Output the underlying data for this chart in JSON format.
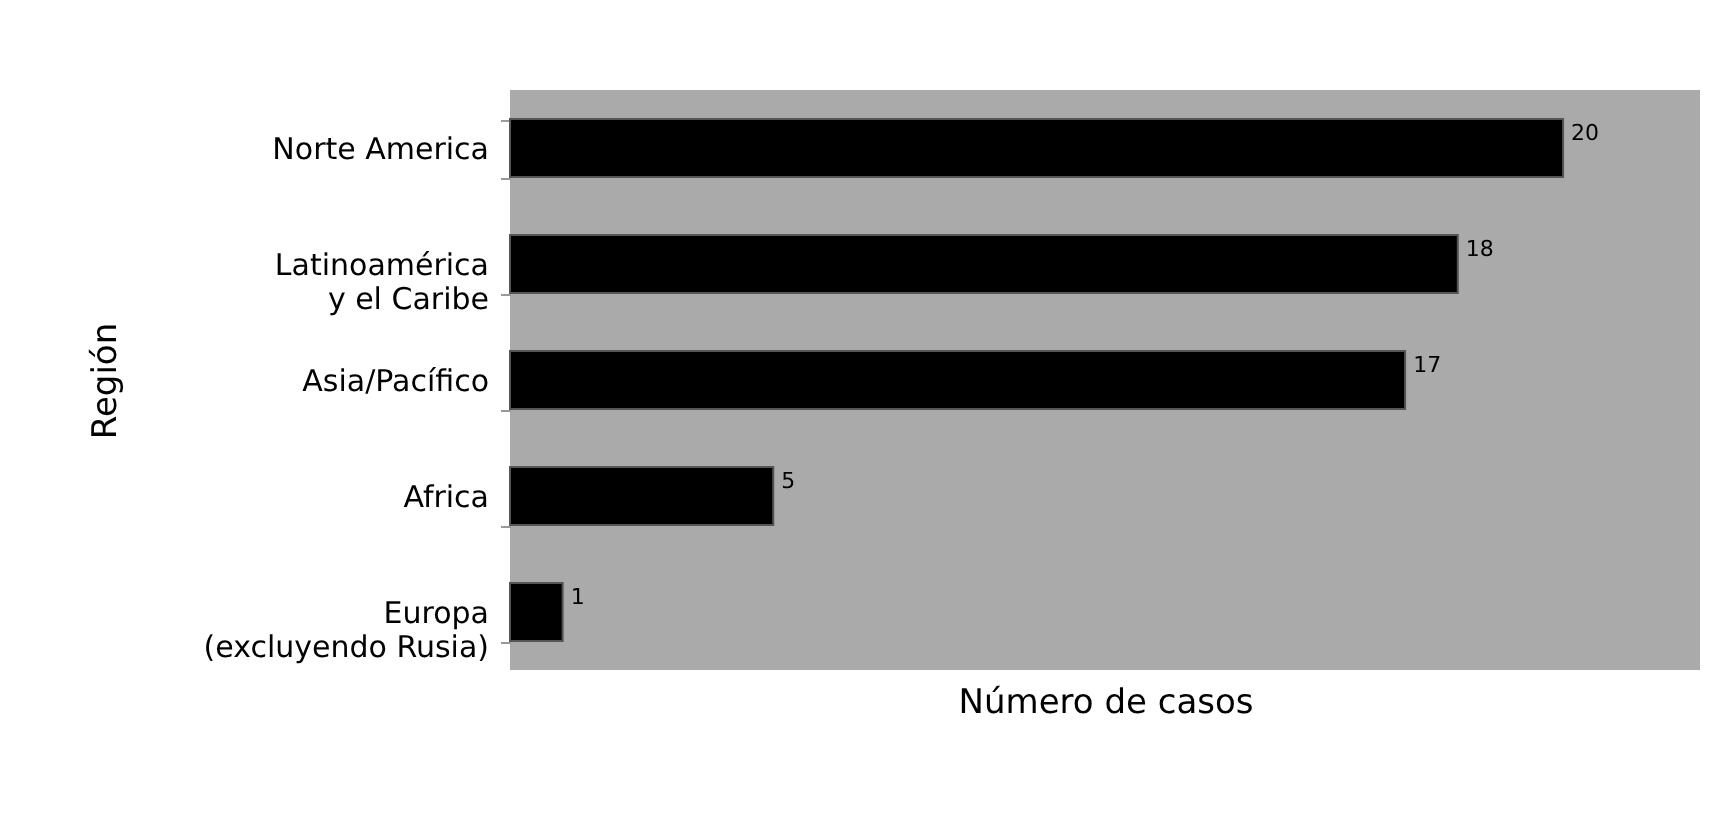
{
  "chart_data": {
    "type": "bar",
    "orientation": "horizontal",
    "xlabel": "Número de casos",
    "ylabel": "Región",
    "categories": [
      "Norte America",
      "Latinoamérica\ny el Caribe",
      "Asia/Pacífico",
      "Africa",
      "Europa\n(excluyendo Rusia)"
    ],
    "values": [
      20,
      18,
      17,
      5,
      1
    ],
    "color": "#000000",
    "xlim": [
      0,
      22.6
    ],
    "data_labels": true,
    "grid": false,
    "tick_labels": "y"
  }
}
